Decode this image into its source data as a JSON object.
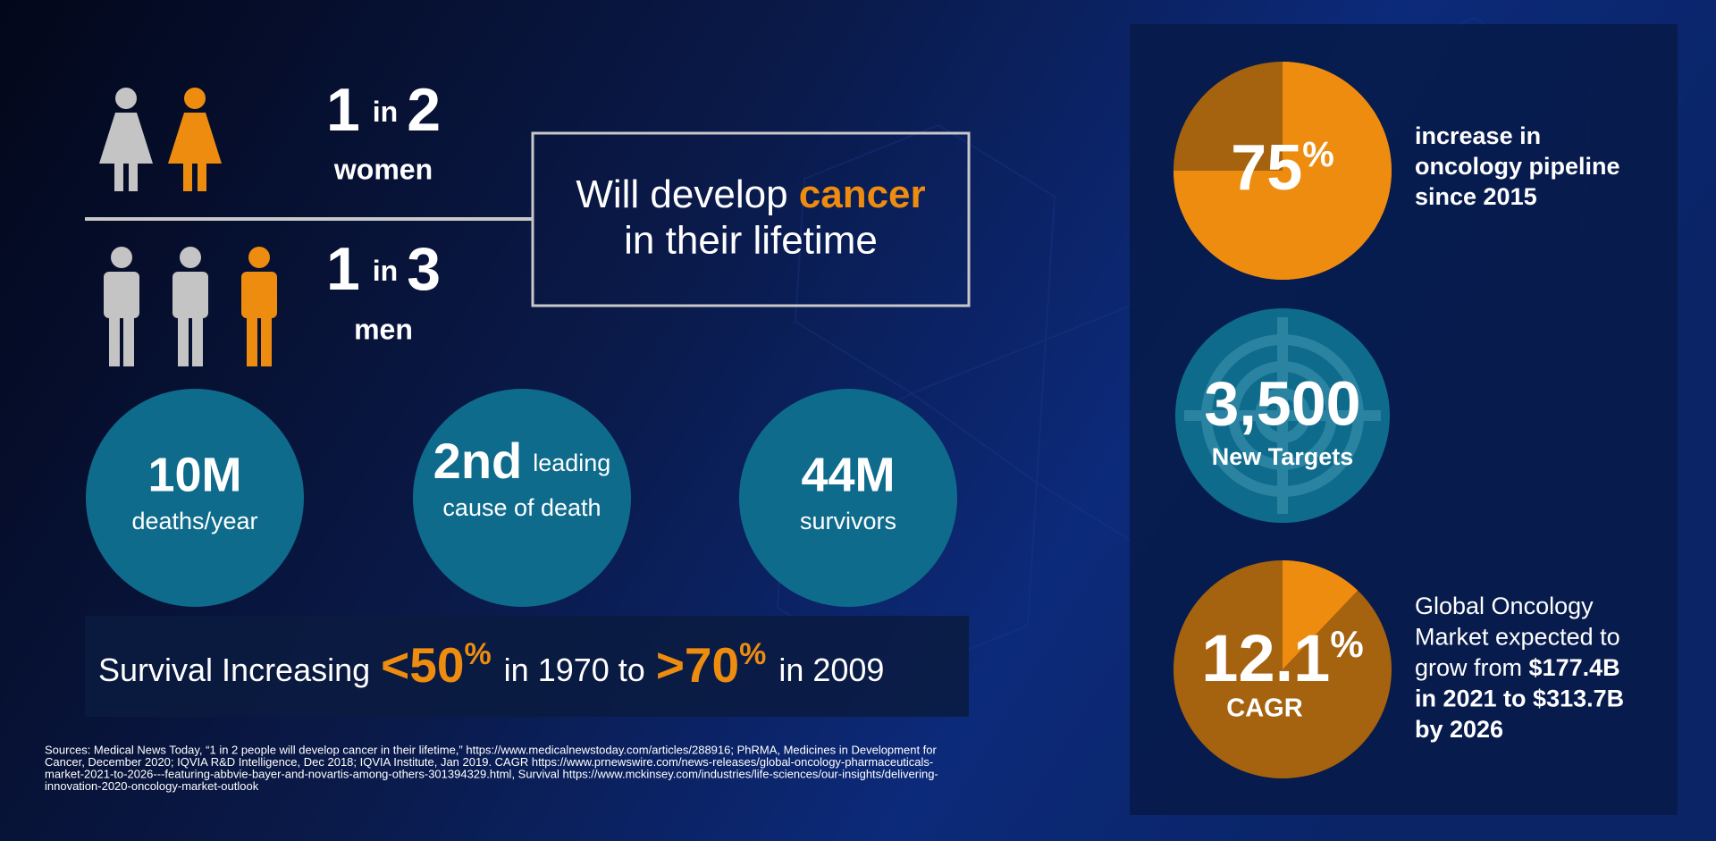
{
  "women": {
    "one": "1",
    "in": "in",
    "two": "2",
    "label": "women"
  },
  "men": {
    "one": "1",
    "in": "in",
    "three": "3",
    "label": "men"
  },
  "box": {
    "line1": [
      "Will develop ",
      "cancer"
    ],
    "line2": "in their lifetime"
  },
  "circles": [
    {
      "big": "10M",
      "sub": "deaths/year"
    },
    {
      "big": "2nd",
      "small": "leading",
      "sub": "cause of death"
    },
    {
      "big": "44M",
      "sub": "survivors"
    }
  ],
  "survival": {
    "a": "Survival Increasing",
    "b": "<50",
    "b_unit": "%",
    "c": "in 1970 to",
    "d": ">70",
    "d_unit": "%",
    "e": "in 2009"
  },
  "sources": [
    "Sources: Medical News Today, “1 in 2 people will develop cancer in their lifetime,” https://www.medicalnewstoday.com/articles/288916; PhRMA, Medicines in Development for",
    "Cancer, December 2020; IQVIA R&D Intelligence, Dec 2018; IQVIA Institute, Jan 2019. CAGR https://www.prnewswire.com/news-releases/global-oncology-pharmaceuticals-",
    "market-2021-to-2026---featuring-abbvie-bayer-and-novartis-among-others-301394329.html, Survival https://www.mckinsey.com/industries/life-sciences/our-insights/delivering-",
    "innovation-2020-oncology-market-outlook"
  ],
  "pipeline": {
    "value": 75,
    "label": "75",
    "unit": "%",
    "text": [
      "increase in",
      "oncology pipeline",
      "since 2015"
    ]
  },
  "targets": {
    "label": "3,500",
    "sub": "New Targets"
  },
  "market": {
    "value": 12.1,
    "label": "12.1",
    "unit": "%",
    "sub": "CAGR",
    "text": [
      [
        {
          "text": "Global Oncology",
          "bold": false
        }
      ],
      [
        {
          "text": "Market expected to",
          "bold": false
        }
      ],
      [
        {
          "text": "grow from ",
          "bold": false
        },
        {
          "text": "$177.4B",
          "bold": true
        }
      ],
      [
        {
          "text": "in 2021 to $313.7B",
          "bold": true
        }
      ],
      [
        {
          "text": "by 2026",
          "bold": true
        }
      ]
    ]
  }
}
